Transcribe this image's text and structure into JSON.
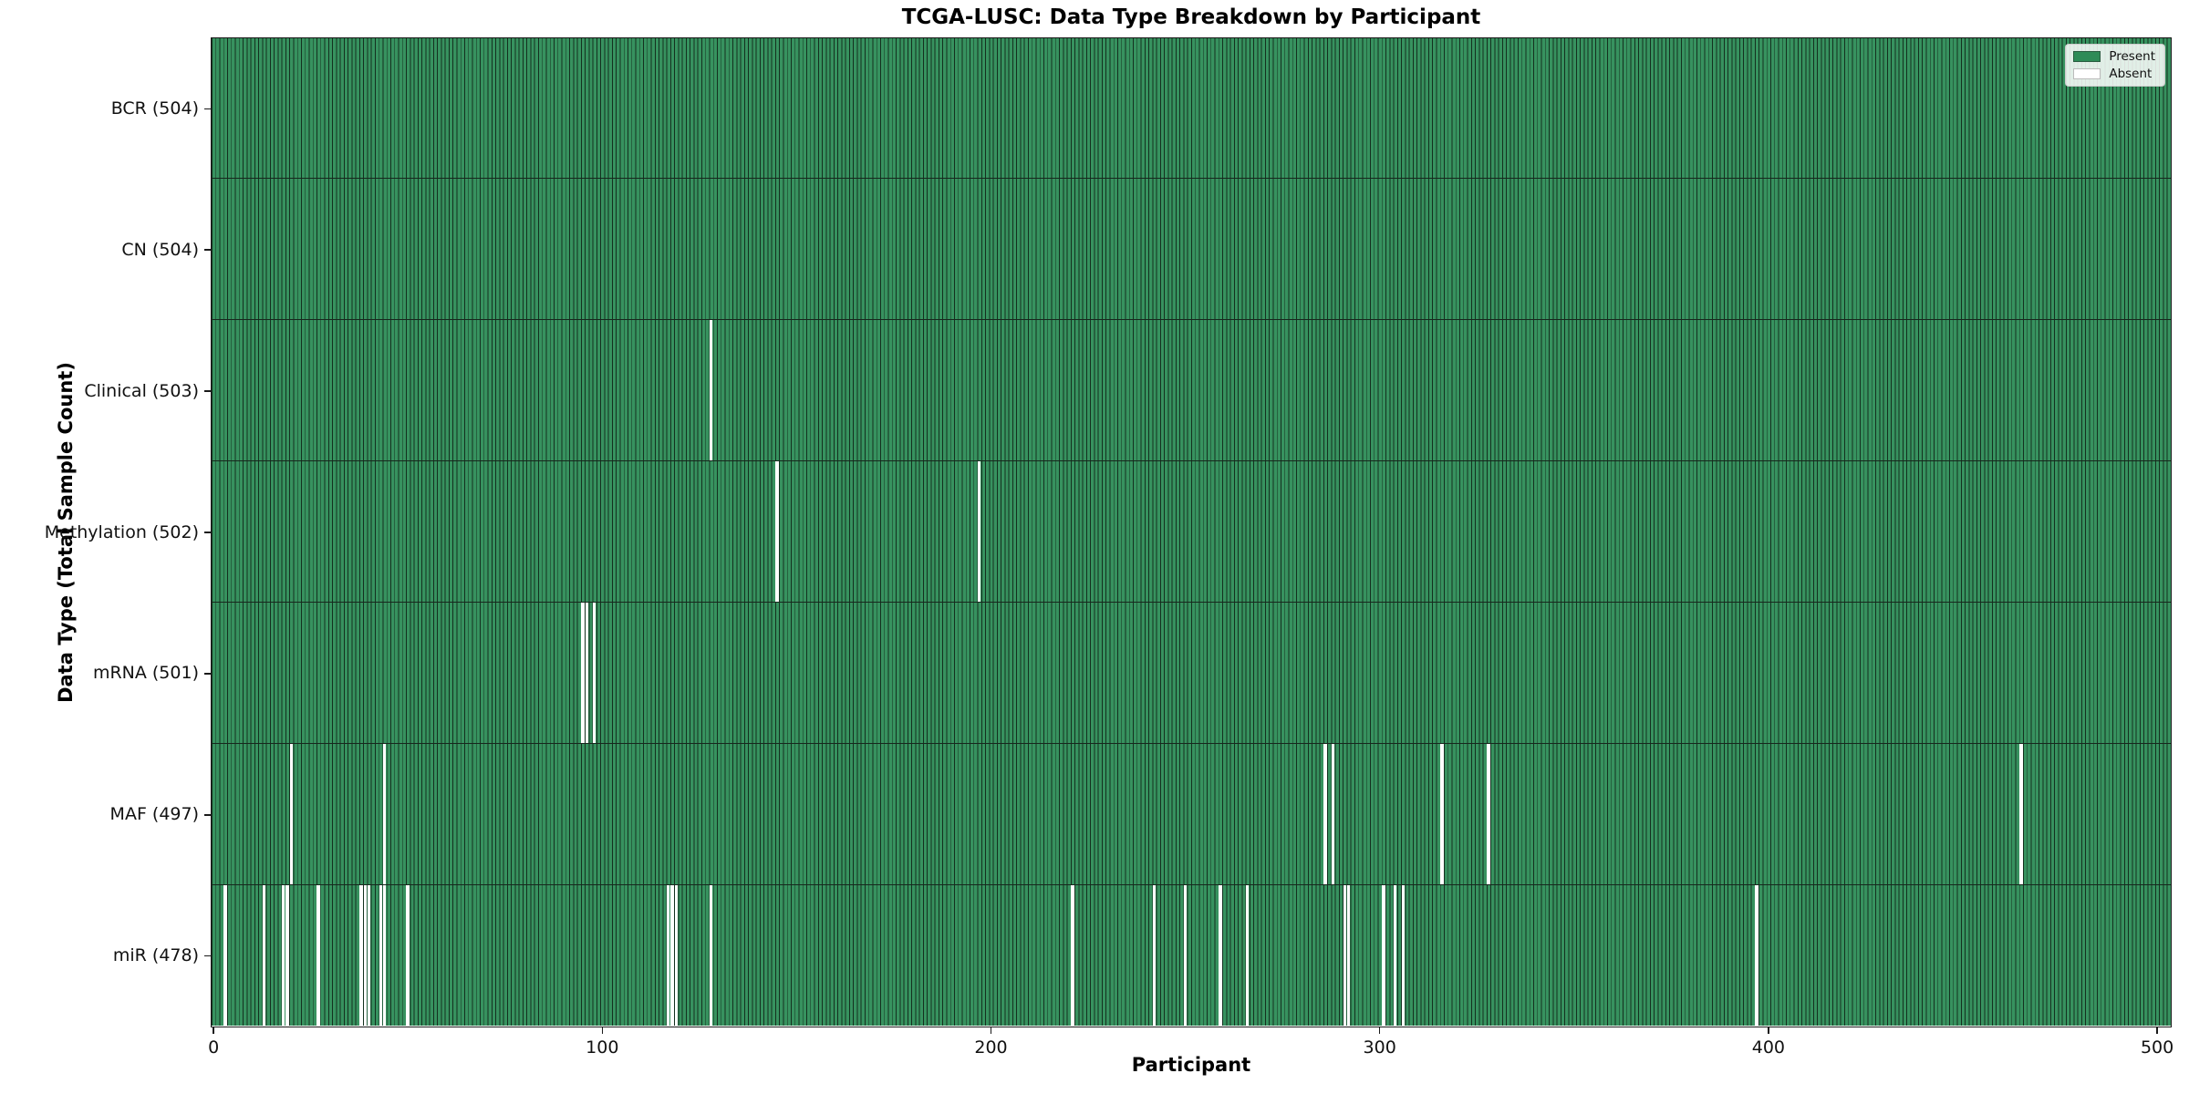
{
  "title": "TCGA-LUSC: Data Type Breakdown by Participant",
  "chart_data": {
    "type": "heatmap",
    "title": "TCGA-LUSC: Data Type Breakdown by Participant",
    "xlabel": "Participant",
    "ylabel": "Data Type (Total Sample Count)",
    "n_participants": 504,
    "xlim": [
      -0.5,
      503.5
    ],
    "x_ticks": [
      0,
      100,
      200,
      300,
      400,
      500
    ],
    "grid": false,
    "legend_position": "upper right",
    "legend": [
      {
        "label": "Present",
        "color": "#2e8b57"
      },
      {
        "label": "Absent",
        "color": "#ffffff"
      }
    ],
    "present_color": "#37925f",
    "absent_color": "#ffffff",
    "bar_edge_color": "#14301f",
    "rows": [
      {
        "label": "BCR (504)",
        "name": "BCR",
        "present_count": 504,
        "absent_participants": []
      },
      {
        "label": "CN (504)",
        "name": "CN",
        "present_count": 504,
        "absent_participants": []
      },
      {
        "label": "Clinical (503)",
        "name": "Clinical",
        "present_count": 503,
        "absent_participants": [
          128
        ]
      },
      {
        "label": "Methylation (502)",
        "name": "Methylation",
        "present_count": 502,
        "absent_participants": [
          145,
          197
        ]
      },
      {
        "label": "mRNA (501)",
        "name": "mRNA",
        "present_count": 501,
        "absent_participants": [
          95,
          96,
          98
        ]
      },
      {
        "label": "MAF (497)",
        "name": "MAF",
        "present_count": 497,
        "absent_participants": [
          20,
          44,
          286,
          288,
          316,
          328,
          465
        ]
      },
      {
        "label": "miR (478)",
        "name": "miR",
        "present_count": 478,
        "absent_participants": [
          3,
          13,
          18,
          19,
          27,
          38,
          39,
          40,
          43,
          44,
          50,
          117,
          118,
          119,
          128,
          221,
          242,
          250,
          259,
          266,
          291,
          292,
          301,
          304,
          306,
          397
        ]
      }
    ]
  }
}
